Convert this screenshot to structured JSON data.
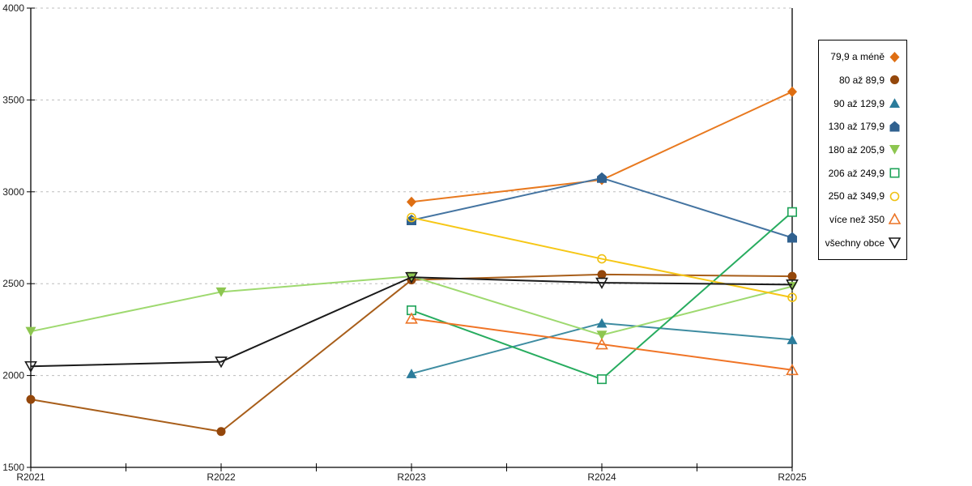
{
  "chart_data": {
    "type": "line",
    "title": "",
    "xlabel": "",
    "ylabel": "",
    "categories": [
      "R2021",
      "R2022",
      "R2023",
      "R2024",
      "R2025"
    ],
    "y_tick_labels": [
      "1500",
      "2000",
      "2500",
      "3000",
      "3500",
      "4000"
    ],
    "ylim": [
      1500,
      4000
    ],
    "ytick_step": 500,
    "grid": "horizontal-dashed",
    "grid_color": "#bdbdbd",
    "axis_color": "#000000",
    "legend_position": "right",
    "series": [
      {
        "name": "79,9 a méně",
        "marker": "diamond-filled",
        "color": "#e8791f",
        "marker_color": "#de6e12",
        "values": [
          null,
          null,
          2945,
          3065,
          3545
        ]
      },
      {
        "name": "80 až 89,9",
        "marker": "circle-filled",
        "color": "#a85e1a",
        "marker_color": "#94470b",
        "values": [
          1870,
          1695,
          2520,
          2550,
          2540
        ]
      },
      {
        "name": "90 až 129,9",
        "marker": "triangle-up-filled",
        "color": "#3e8ca1",
        "marker_color": "#2b7c9b",
        "values": [
          null,
          null,
          2010,
          2285,
          2195
        ]
      },
      {
        "name": "130 až 179,9",
        "marker": "pentagon-filled",
        "color": "#4474a1",
        "marker_color": "#30618f",
        "values": [
          null,
          null,
          2845,
          3075,
          2750
        ]
      },
      {
        "name": "180 až 205,9",
        "marker": "triangle-down-filled",
        "color": "#9ed96f",
        "marker_color": "#8dc650",
        "values": [
          2240,
          2455,
          2540,
          2220,
          2485
        ]
      },
      {
        "name": "206 až 249,9",
        "marker": "square-open",
        "color": "#27ac5f",
        "marker_color": "#1ea358",
        "values": [
          null,
          null,
          2355,
          1980,
          2890
        ]
      },
      {
        "name": "250 až 349,9",
        "marker": "circle-open",
        "color": "#f6c716",
        "marker_color": "#efc113",
        "values": [
          null,
          null,
          2860,
          2635,
          2425
        ]
      },
      {
        "name": "více než 350",
        "marker": "triangle-up-open",
        "color": "#f07426",
        "marker_color": "#ec7527",
        "values": [
          null,
          null,
          2310,
          2170,
          2030
        ]
      },
      {
        "name": "všechny obce",
        "marker": "triangle-down-open",
        "color": "#1a1a1a",
        "marker_color": "#1a1a1a",
        "values": [
          2050,
          2075,
          2535,
          2505,
          2495
        ]
      }
    ]
  }
}
